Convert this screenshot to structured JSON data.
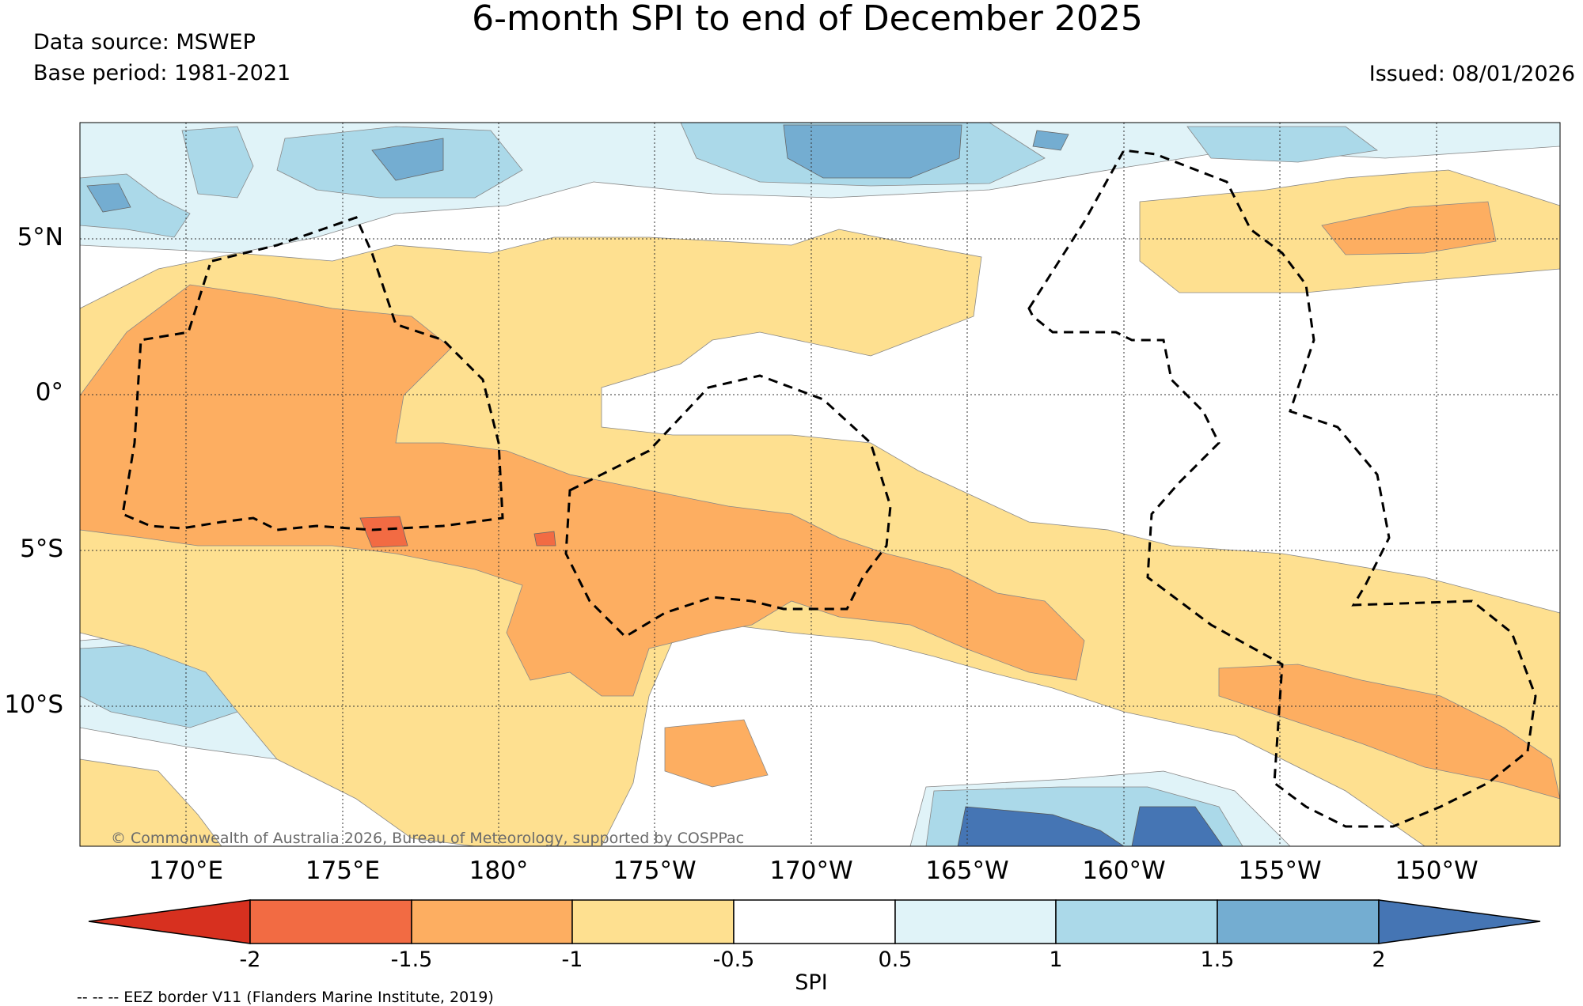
{
  "title": "6-month SPI to end of December 2025",
  "data_source": "Data source: MSWEP",
  "base_period": "Base period: 1981-2021",
  "issued": "Issued: 08/01/2026",
  "lat_labels": [
    "5°N",
    "0°",
    "5°S",
    "10°S"
  ],
  "lon_labels": [
    "170°E",
    "175°E",
    "180°",
    "175°W",
    "170°W",
    "165°W",
    "160°W",
    "155°W",
    "150°W"
  ],
  "colorbar": {
    "label": "SPI",
    "ticks": [
      "-2",
      "-1.5",
      "-1",
      "-0.5",
      "0.5",
      "1",
      "1.5",
      "2"
    ],
    "colors": [
      "#d7301f",
      "#f26b43",
      "#fdae61",
      "#fee090",
      "#ffffff",
      "#e0f3f8",
      "#abd9e9",
      "#74add1",
      "#4575b4"
    ]
  },
  "credit": "© Commonwealth of Australia 2026, Bureau of Meteorology, supported by COSPPac",
  "eez_note": "-- -- -- EEZ border V11 (Flanders Marine Institute, 2019)"
}
